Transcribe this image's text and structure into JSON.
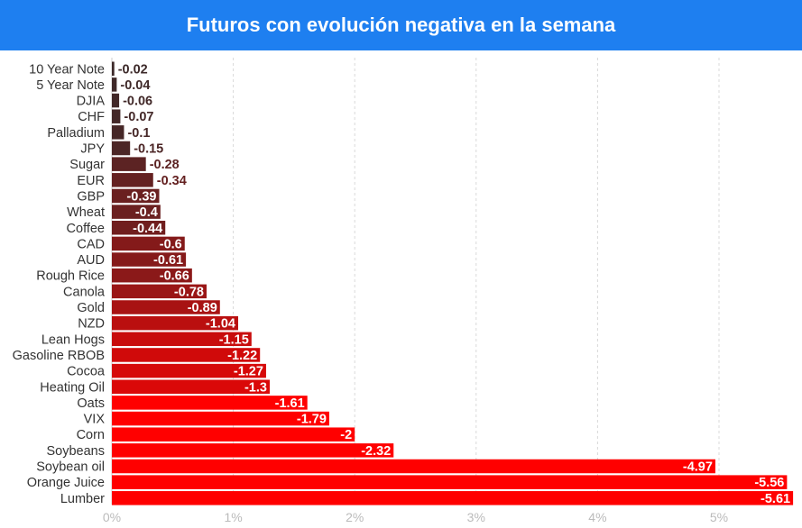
{
  "header": {
    "title": "Futuros con evolución negativa en la semana"
  },
  "colors": {
    "header_bg": "#1e7ff0",
    "bar_dark": "#3a2a2a",
    "bar_bright": "#ff0000",
    "grid": "#d9d9d9"
  },
  "chart_data": {
    "type": "bar",
    "orientation": "horizontal",
    "title": "Futuros con evolución negativa en la semana",
    "categories": [
      "10 Year Note",
      "5 Year Note",
      "DJIA",
      "CHF",
      "Palladium",
      "JPY",
      "Sugar",
      "EUR",
      "GBP",
      "Wheat",
      "Coffee",
      "CAD",
      "AUD",
      "Rough Rice",
      "Canola",
      "Gold",
      "NZD",
      "Lean Hogs",
      "Gasoline RBOB",
      "Cocoa",
      "Heating Oil",
      "Oats",
      "VIX",
      "Corn",
      "Soybeans",
      "Soybean oil",
      "Orange Juice",
      "Lumber"
    ],
    "values": [
      -0.02,
      -0.04,
      -0.06,
      -0.07,
      -0.1,
      -0.15,
      -0.28,
      -0.34,
      -0.39,
      -0.4,
      -0.44,
      -0.6,
      -0.61,
      -0.66,
      -0.78,
      -0.89,
      -1.04,
      -1.15,
      -1.22,
      -1.27,
      -1.3,
      -1.61,
      -1.79,
      -2,
      -2.32,
      -4.97,
      -5.56,
      -5.61
    ],
    "value_labels": [
      "-0.02",
      "-0.04",
      "-0.06",
      "-0.07",
      "-0.1",
      "-0.15",
      "-0.28",
      "-0.34",
      "-0.39",
      "-0.4",
      "-0.44",
      "-0.6",
      "-0.61",
      "-0.66",
      "-0.78",
      "-0.89",
      "-1.04",
      "-1.15",
      "-1.22",
      "-1.27",
      "-1.3",
      "-1.61",
      "-1.79",
      "-2",
      "-2.32",
      "-4.97",
      "-5.56",
      "-5.61"
    ],
    "x_ticks": [
      "0%",
      "1%",
      "2%",
      "3%",
      "4%",
      "5%"
    ],
    "x_tick_values": [
      0,
      1,
      2,
      3,
      4,
      5
    ],
    "xlim": [
      0,
      5.61
    ],
    "xlabel": "",
    "ylabel": "",
    "grid": "vertical dashed"
  }
}
